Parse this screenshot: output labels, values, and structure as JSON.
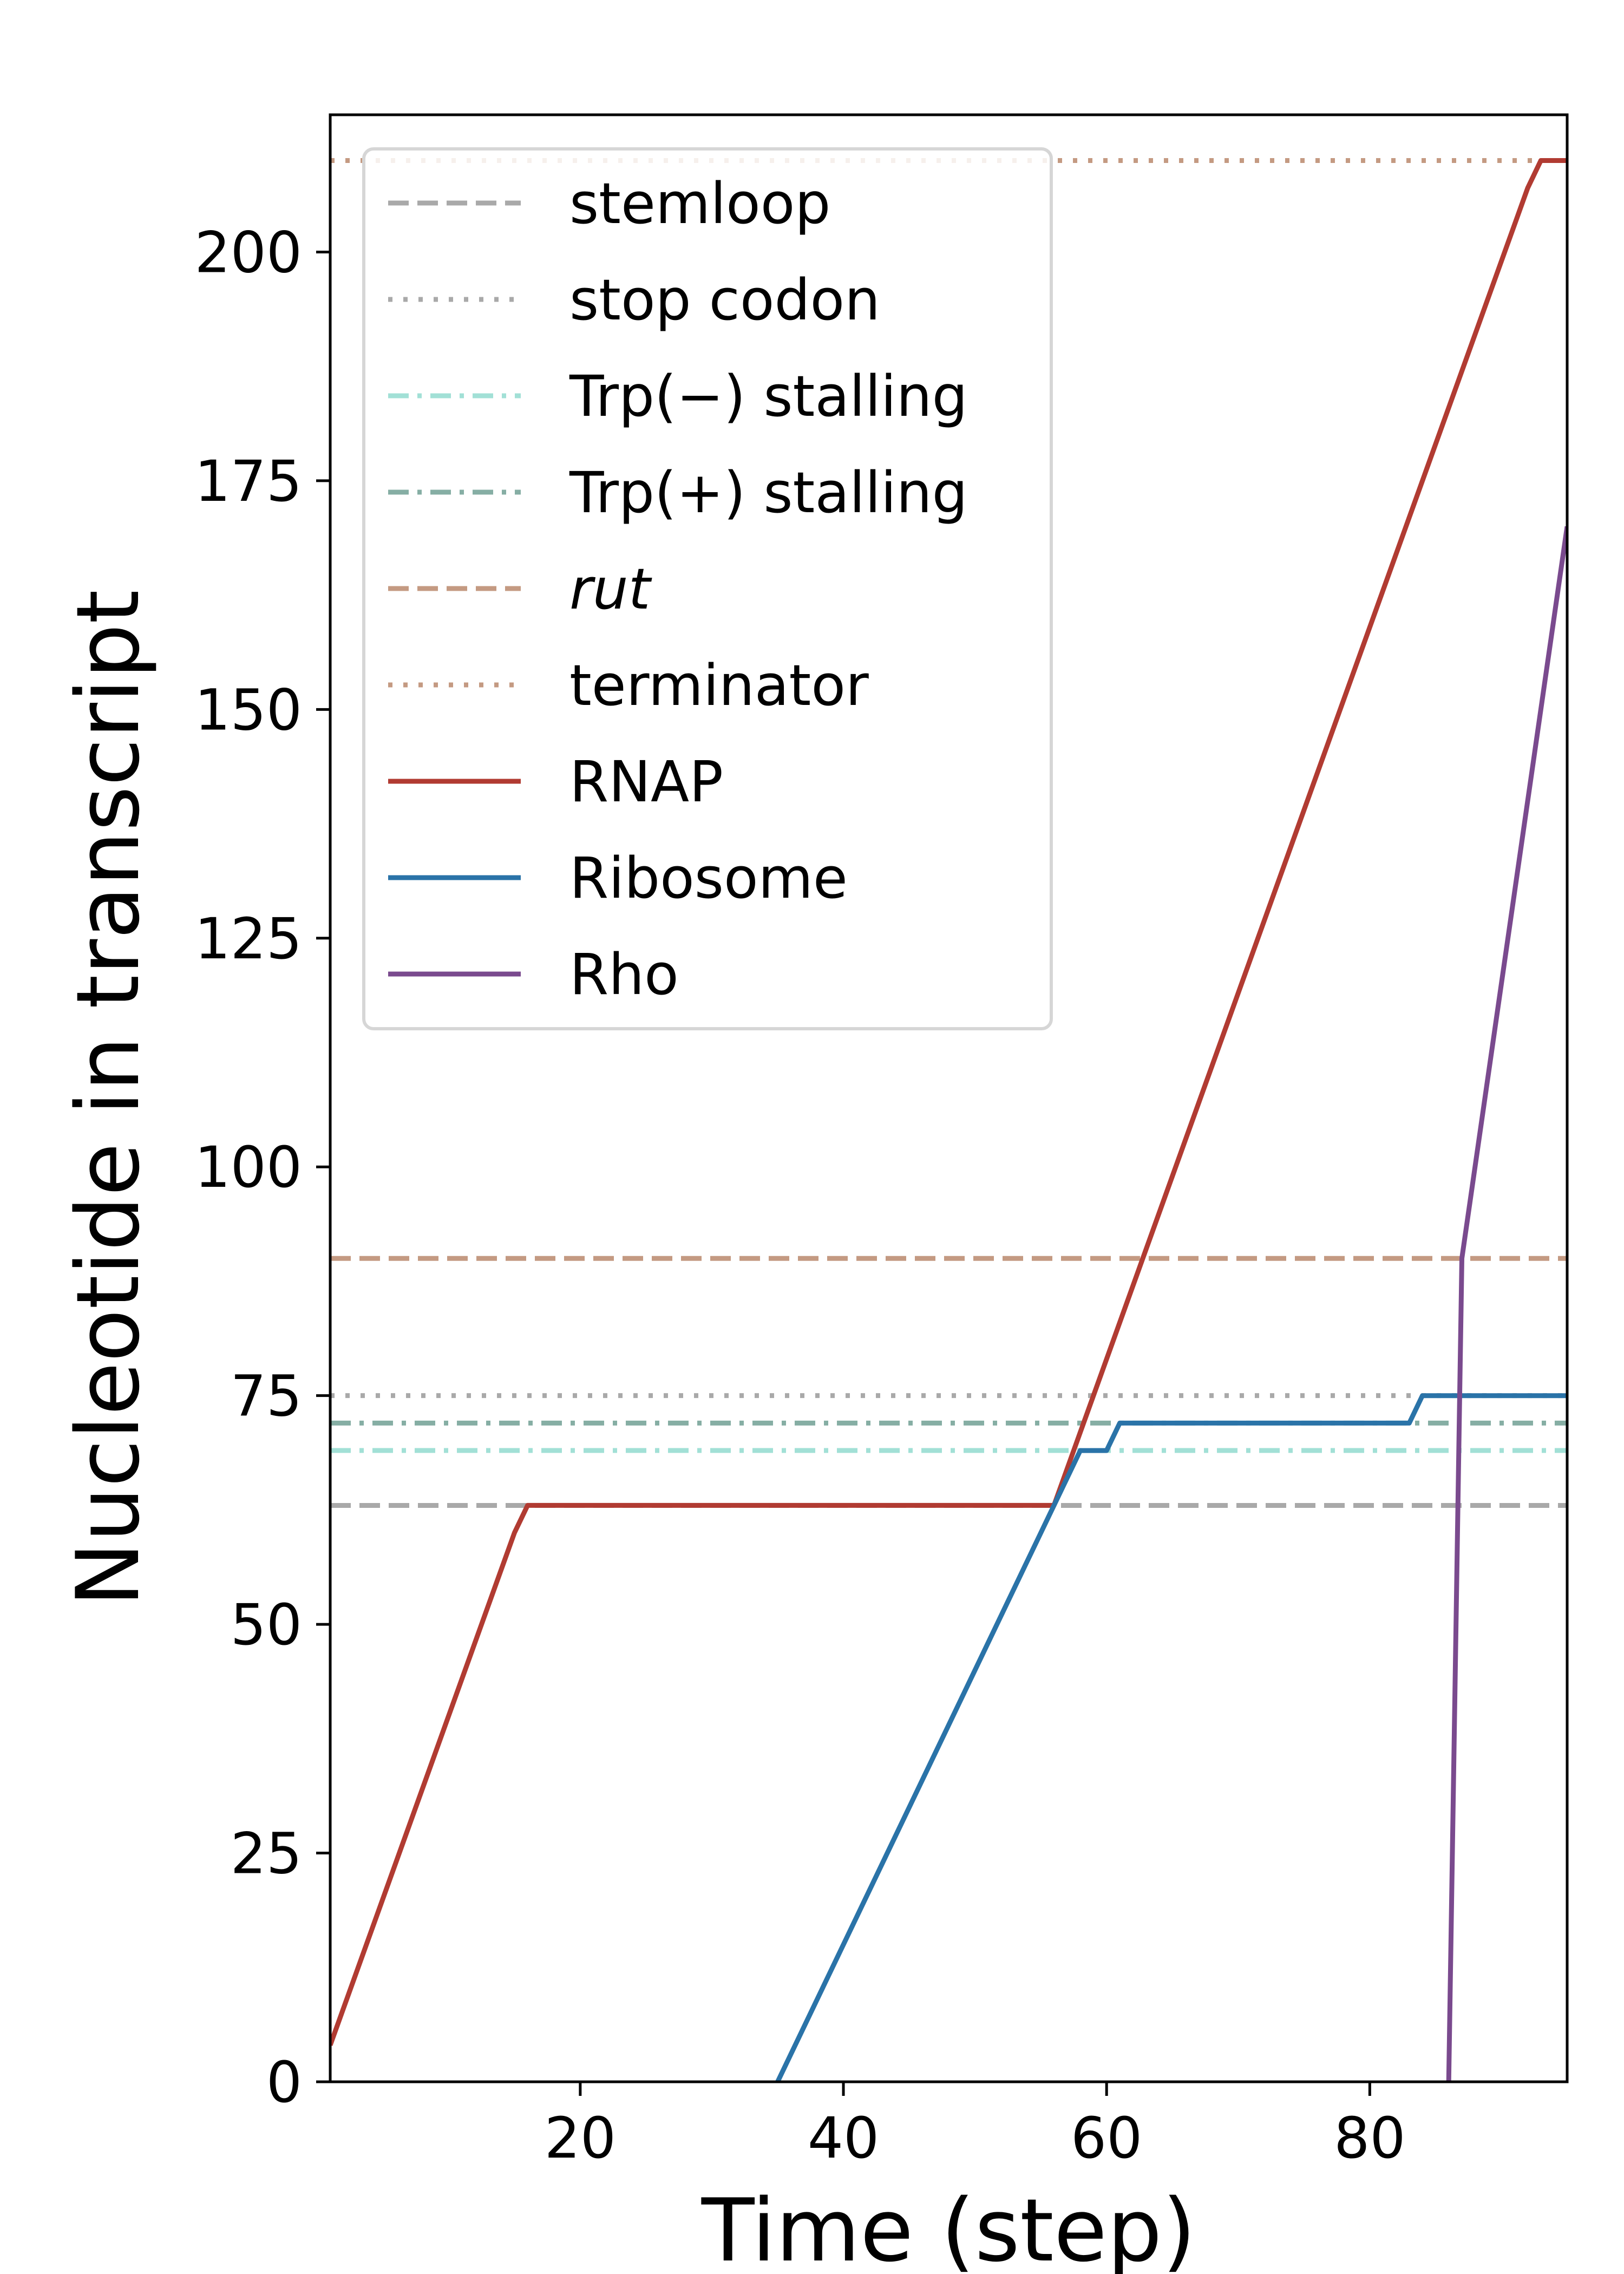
{
  "chart_data": {
    "type": "line",
    "title": "",
    "xlabel": "Time (step)",
    "ylabel": "Nucleotide in transcript",
    "xlim": [
      1,
      95
    ],
    "ylim": [
      0,
      215
    ],
    "xticks": [
      20,
      40,
      60,
      80
    ],
    "yticks": [
      0,
      25,
      50,
      75,
      100,
      125,
      150,
      175,
      200
    ],
    "grid": false,
    "legend_position": "upper-left",
    "reference_lines": [
      {
        "name": "stemloop",
        "y": 63,
        "color": "#a9a9a9",
        "style": "dashed"
      },
      {
        "name": "stop codon",
        "y": 75,
        "color": "#a9a9a9",
        "style": "dotted"
      },
      {
        "name": "Trp(−) stalling",
        "y": 69,
        "color": "#a2e0d6",
        "style": "dashdot"
      },
      {
        "name": "Trp(+) stalling",
        "y": 72,
        "color": "#86aea4",
        "style": "dashdot"
      },
      {
        "name": "rut",
        "y": 90,
        "color": "#c49a82",
        "style": "dashed",
        "italic": true
      },
      {
        "name": "terminator",
        "y": 210,
        "color": "#c49a82",
        "style": "dotted"
      }
    ],
    "series": [
      {
        "name": "RNAP",
        "color": "#b13b32",
        "x": [
          1,
          15,
          16,
          56,
          91,
          92,
          93,
          95
        ],
        "y": [
          4,
          60,
          63,
          63,
          203,
          207,
          210,
          210
        ]
      },
      {
        "name": "Ribosome",
        "color": "#2a73a8",
        "x": [
          35,
          56,
          58,
          60,
          61,
          83,
          84,
          95
        ],
        "y": [
          0,
          63,
          69,
          69,
          72,
          72,
          75,
          75
        ]
      },
      {
        "name": "Rho",
        "color": "#7a4a8e",
        "x": [
          86,
          87,
          95
        ],
        "y": [
          0,
          90,
          170
        ]
      }
    ]
  }
}
